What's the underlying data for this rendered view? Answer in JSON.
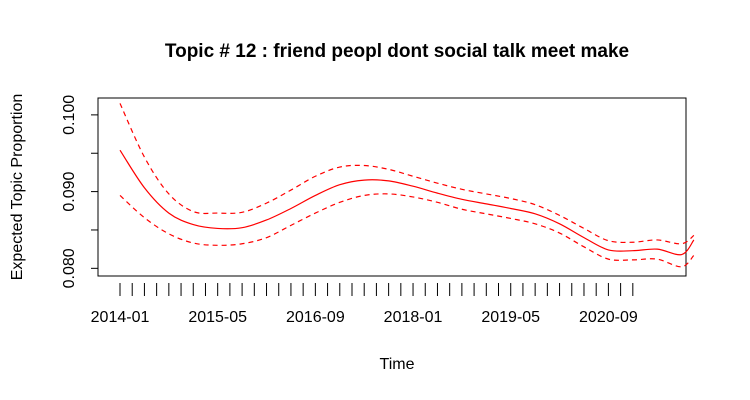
{
  "chart_data": {
    "type": "line",
    "title": "Topic # 12 :  friend peopl dont social talk meet make",
    "xlabel": "Time",
    "ylabel": "Expected Topic Proportion",
    "ylim": [
      0.079,
      0.1022
    ],
    "yticks": [
      0.08,
      0.085,
      0.09,
      0.095,
      0.1
    ],
    "ytick_labels": [
      "0.080",
      "",
      "0.090",
      "",
      "0.100"
    ],
    "xtick_count": 43,
    "xtick_labels": [
      {
        "index": 0,
        "label": "2014-01"
      },
      {
        "index": 8,
        "label": "2015-05"
      },
      {
        "index": 16,
        "label": "2016-09"
      },
      {
        "index": 24,
        "label": "2018-01"
      },
      {
        "index": 32,
        "label": "2019-05"
      },
      {
        "index": 40,
        "label": "2020-09"
      }
    ],
    "grid": false,
    "color": "#ff0000",
    "series": [
      {
        "role": "estimate",
        "x": [
          0,
          2,
          4,
          6,
          8,
          10,
          12,
          14,
          16,
          18,
          20,
          22,
          24,
          26,
          28,
          30,
          32,
          34,
          36,
          38,
          40,
          42,
          44,
          46,
          47
        ],
        "values": [
          0.0954,
          0.0905,
          0.0872,
          0.0857,
          0.0852,
          0.0853,
          0.0863,
          0.0878,
          0.0895,
          0.0909,
          0.0915,
          0.0914,
          0.0907,
          0.0898,
          0.089,
          0.0884,
          0.0878,
          0.0871,
          0.0858,
          0.084,
          0.0824,
          0.0823,
          0.0825,
          0.0818,
          0.0837
        ]
      },
      {
        "role": "upper",
        "x": [
          0,
          2,
          4,
          6,
          8,
          10,
          12,
          14,
          16,
          18,
          20,
          22,
          24,
          26,
          28,
          30,
          32,
          34,
          36,
          38,
          40,
          42,
          44,
          46,
          47
        ],
        "values": [
          0.1015,
          0.0945,
          0.0897,
          0.0874,
          0.0872,
          0.0873,
          0.0885,
          0.0902,
          0.092,
          0.0932,
          0.0934,
          0.0929,
          0.092,
          0.0911,
          0.0903,
          0.0897,
          0.0891,
          0.0883,
          0.0869,
          0.0852,
          0.0836,
          0.0834,
          0.0837,
          0.0832,
          0.0843
        ]
      },
      {
        "role": "lower",
        "x": [
          0,
          2,
          4,
          6,
          8,
          10,
          12,
          14,
          16,
          18,
          20,
          22,
          24,
          26,
          28,
          30,
          32,
          34,
          36,
          38,
          40,
          42,
          44,
          46,
          47
        ],
        "values": [
          0.0895,
          0.0866,
          0.0845,
          0.0833,
          0.083,
          0.0832,
          0.084,
          0.0856,
          0.0872,
          0.0886,
          0.0895,
          0.0897,
          0.0893,
          0.0886,
          0.0877,
          0.0871,
          0.0865,
          0.0858,
          0.0846,
          0.0828,
          0.0812,
          0.0811,
          0.0812,
          0.0802,
          0.0817
        ]
      }
    ]
  }
}
